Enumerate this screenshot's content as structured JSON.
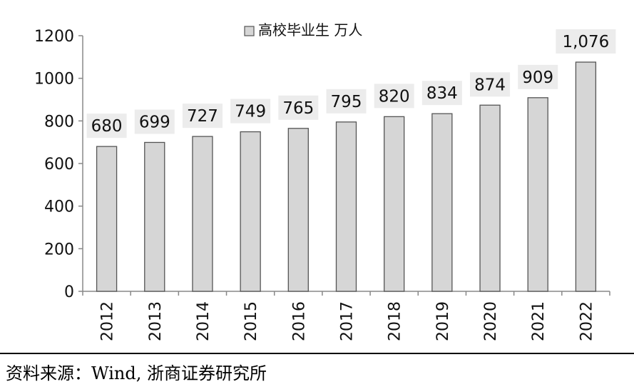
{
  "chart_data": {
    "type": "bar",
    "categories": [
      "2012",
      "2013",
      "2014",
      "2015",
      "2016",
      "2017",
      "2018",
      "2019",
      "2020",
      "2021",
      "2022"
    ],
    "series": [
      {
        "name": "高校毕业生 万人",
        "values": [
          680,
          699,
          727,
          749,
          765,
          795,
          820,
          834,
          874,
          909,
          1076
        ]
      }
    ],
    "data_labels": [
      "680",
      "699",
      "727",
      "749",
      "765",
      "795",
      "820",
      "834",
      "874",
      "909",
      "1,076"
    ],
    "ylim": [
      0,
      1200
    ],
    "yticks": [
      0,
      200,
      400,
      600,
      800,
      1000,
      1200
    ],
    "legend": "top-center",
    "grid": false,
    "colors": {
      "bar_fill": "#d6d6d6",
      "bar_stroke": "#555555",
      "label_bg": "#ececec"
    }
  },
  "source": "资料来源：Wind, 浙商证券研究所"
}
